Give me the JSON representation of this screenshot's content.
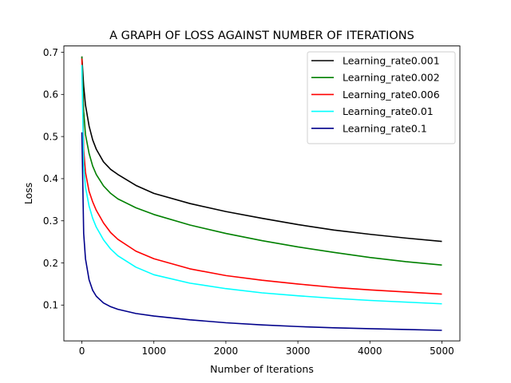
{
  "chart_data": {
    "type": "line",
    "title": "A GRAPH OF LOSS AGAINST NUMBER OF ITERATIONS",
    "xlabel": "Number of Iterations",
    "ylabel": "Loss",
    "xlim": [
      -250,
      5250
    ],
    "ylim": [
      0.015,
      0.715
    ],
    "xticks": [
      0,
      1000,
      2000,
      3000,
      4000,
      5000
    ],
    "xtick_labels": [
      "0",
      "1000",
      "2000",
      "3000",
      "4000",
      "5000"
    ],
    "yticks": [
      0.1,
      0.2,
      0.3,
      0.4,
      0.5,
      0.6,
      0.7
    ],
    "ytick_labels": [
      "0.1",
      "0.2",
      "0.3",
      "0.4",
      "0.5",
      "0.6",
      "0.7"
    ],
    "grid": false,
    "legend_position": "top-right",
    "x": [
      0,
      25,
      50,
      100,
      150,
      200,
      300,
      400,
      500,
      750,
      1000,
      1500,
      2000,
      2500,
      3000,
      3500,
      4000,
      4500,
      5000
    ],
    "series": [
      {
        "name": "Learning_rate0.001",
        "color": "#000000",
        "values": [
          0.69,
          0.62,
          0.575,
          0.525,
          0.492,
          0.47,
          0.44,
          0.422,
          0.41,
          0.384,
          0.365,
          0.341,
          0.322,
          0.306,
          0.291,
          0.278,
          0.268,
          0.259,
          0.251
        ]
      },
      {
        "name": "Learning_rate0.002",
        "color": "#008000",
        "values": [
          0.69,
          0.56,
          0.505,
          0.46,
          0.43,
          0.41,
          0.383,
          0.365,
          0.352,
          0.331,
          0.315,
          0.29,
          0.27,
          0.253,
          0.238,
          0.225,
          0.213,
          0.203,
          0.195
        ]
      },
      {
        "name": "Learning_rate0.006",
        "color": "#ff0000",
        "values": [
          0.685,
          0.47,
          0.415,
          0.37,
          0.345,
          0.325,
          0.295,
          0.272,
          0.256,
          0.228,
          0.21,
          0.186,
          0.17,
          0.159,
          0.15,
          0.142,
          0.136,
          0.131,
          0.126
        ]
      },
      {
        "name": "Learning_rate0.01",
        "color": "#00ffff",
        "values": [
          0.67,
          0.43,
          0.38,
          0.335,
          0.306,
          0.285,
          0.255,
          0.233,
          0.217,
          0.19,
          0.172,
          0.152,
          0.139,
          0.129,
          0.122,
          0.116,
          0.111,
          0.107,
          0.103
        ]
      },
      {
        "name": "Learning_rate0.1",
        "color": "#00008b",
        "values": [
          0.51,
          0.27,
          0.21,
          0.16,
          0.135,
          0.121,
          0.105,
          0.096,
          0.09,
          0.08,
          0.074,
          0.065,
          0.058,
          0.053,
          0.049,
          0.046,
          0.044,
          0.042,
          0.04
        ]
      }
    ]
  }
}
